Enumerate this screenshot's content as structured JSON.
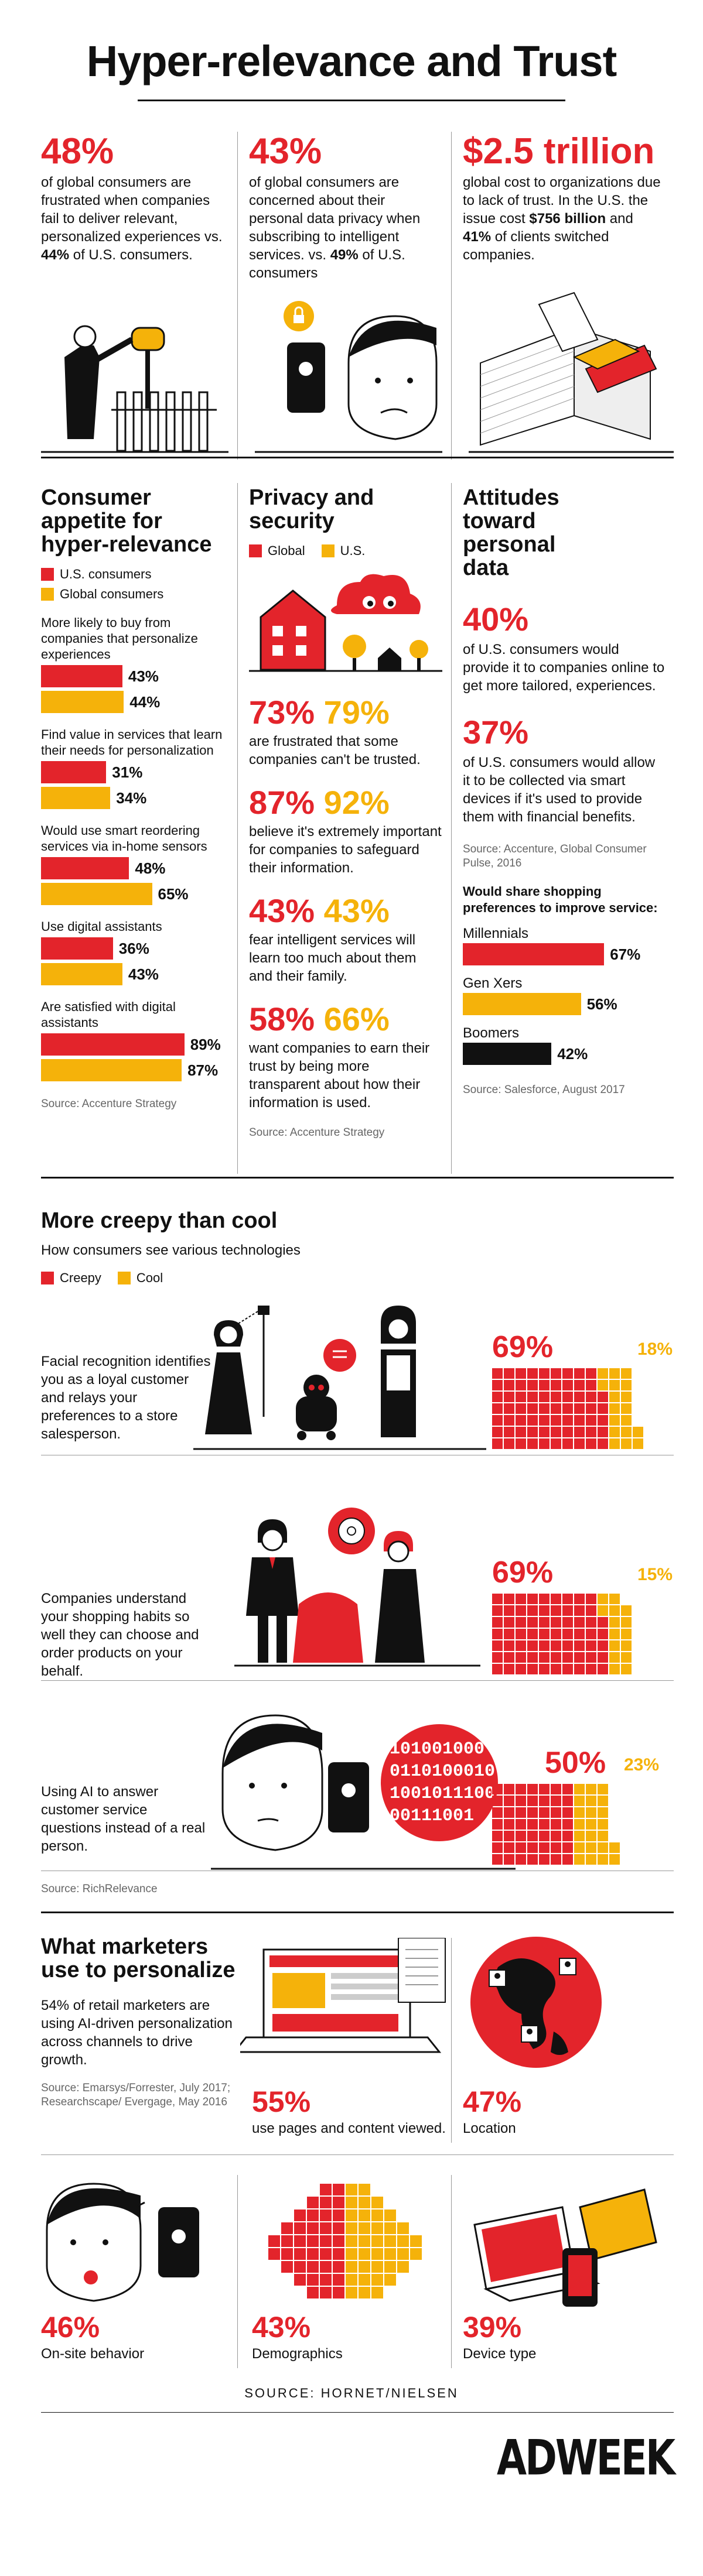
{
  "title": "Hyper-relevance and Trust",
  "top": {
    "c1": {
      "stat": "48%",
      "t1": "of global consumers are frustrated when companies fail to deliver relevant, personalized experiences vs. ",
      "t2": "44%",
      "t3": " of U.S. consumers."
    },
    "c2": {
      "stat": "43%",
      "t1": "of global consumers are concerned about their personal data privacy when subscribing to intelligent services. vs. ",
      "t2": "49%",
      "t3": " of U.S. consumers"
    },
    "c3": {
      "stat": "$2.5 trillion",
      "t1": "global cost to organizations due to lack of trust. In the U.S. the issue cost ",
      "t2": "$756 billion",
      "t3": " and ",
      "t4": "41%",
      "t5": " of clients switched companies."
    }
  },
  "appetite": {
    "heading": "Consumer appetite for hyper-relevance",
    "legend_us": "U.S. consumers",
    "legend_global": "Global consumers",
    "items": [
      {
        "label": "More likely to buy from companies that personalize experiences",
        "us": 43,
        "us_label": "43%",
        "global": 44,
        "global_label": "44%"
      },
      {
        "label": "Find value in services that learn their needs for personalization",
        "us": 31,
        "us_label": "31%",
        "global": 34,
        "global_label": "34%"
      },
      {
        "label": "Would use smart reordering services via in-home sensors",
        "us": 48,
        "us_label": "48%",
        "global": 65,
        "global_label": "65%"
      },
      {
        "label": "Use digital assistants",
        "us": 36,
        "us_label": "36%",
        "global": 43,
        "global_label": "43%"
      },
      {
        "label": "Are satisfied with digital assistants",
        "us": 89,
        "us_label": "89%",
        "global": 87,
        "global_label": "87%"
      }
    ],
    "source": "Source: Accenture Strategy"
  },
  "privacy": {
    "heading": "Privacy and security",
    "legend_global": "Global",
    "legend_us": "U.S.",
    "items": [
      {
        "g": "73%",
        "u": "79%",
        "text": "are frustrated that some companies can't be trusted."
      },
      {
        "g": "87%",
        "u": "92%",
        "text": "believe it's extremely important for companies to safeguard their information."
      },
      {
        "g": "43%",
        "u": "43%",
        "text": "fear intelligent services will learn too much about them and their family."
      },
      {
        "g": "58%",
        "u": "66%",
        "text": "want companies to earn their trust by being more transparent about how their information is used."
      }
    ],
    "source": "Source: Accenture Strategy"
  },
  "attitudes": {
    "heading": "Attitudes toward personal data",
    "s1": "40%",
    "t1": "of U.S. consumers would provide it to companies online to get more tailored, experiences.",
    "s2": "37%",
    "t2": "of U.S. consumers would allow it to be collected via smart devices if it's used to provide them with financial benefits.",
    "source1": "Source: Accenture, Global Consumer Pulse, 2016",
    "share_heading": "Would share shopping preferences to improve service:",
    "groups": [
      {
        "name": "Millennials",
        "value": 67,
        "label": "67%",
        "color": "#e3242b"
      },
      {
        "name": "Gen Xers",
        "value": 56,
        "label": "56%",
        "color": "#f5b20a"
      },
      {
        "name": "Boomers",
        "value": 42,
        "label": "42%",
        "color": "#111111"
      }
    ],
    "source2": "Source: Salesforce, August 2017"
  },
  "creepy": {
    "heading": "More creepy than cool",
    "sub": "How consumers see various technologies",
    "legend_creepy": "Creepy",
    "legend_cool": "Cool",
    "rows": [
      {
        "text": "Facial recognition identifies you as a loyal customer and relays your preferences to a store salesperson.",
        "creepy": 69,
        "creepy_label": "69%",
        "cool": 18,
        "cool_label": "18%"
      },
      {
        "text": "Companies understand your shopping habits so well they can choose and order products on your behalf.",
        "creepy": 69,
        "creepy_label": "69%",
        "cool": 15,
        "cool_label": "15%"
      },
      {
        "text": "Using AI to answer customer service questions instead of a real person.",
        "creepy": 50,
        "creepy_label": "50%",
        "cool": 23,
        "cool_label": "23%"
      }
    ],
    "binary": [
      "101001000",
      "0110100010",
      "1001011100",
      "00111001"
    ],
    "source": "Source: RichRelevance"
  },
  "marketers": {
    "heading": "What marketers use to personalize",
    "intro": "54% of retail marketers are using AI-driven personalization across channels to drive growth.",
    "source": "Source: Emarsys/Forrester, July 2017; Researchscape/ Evergage, May 2016",
    "items": [
      {
        "stat": "55%",
        "label": "use pages and content viewed."
      },
      {
        "stat": "47%",
        "label": "Location"
      },
      {
        "stat": "46%",
        "label": "On-site behavior"
      },
      {
        "stat": "43%",
        "label": "Demographics"
      },
      {
        "stat": "39%",
        "label": "Device type"
      }
    ]
  },
  "footer": {
    "source": "SOURCE: HORNET/NIELSEN",
    "brand": "ADWEEK"
  },
  "colors": {
    "red": "#e3242b",
    "yellow": "#f5b20a",
    "black": "#111111"
  }
}
